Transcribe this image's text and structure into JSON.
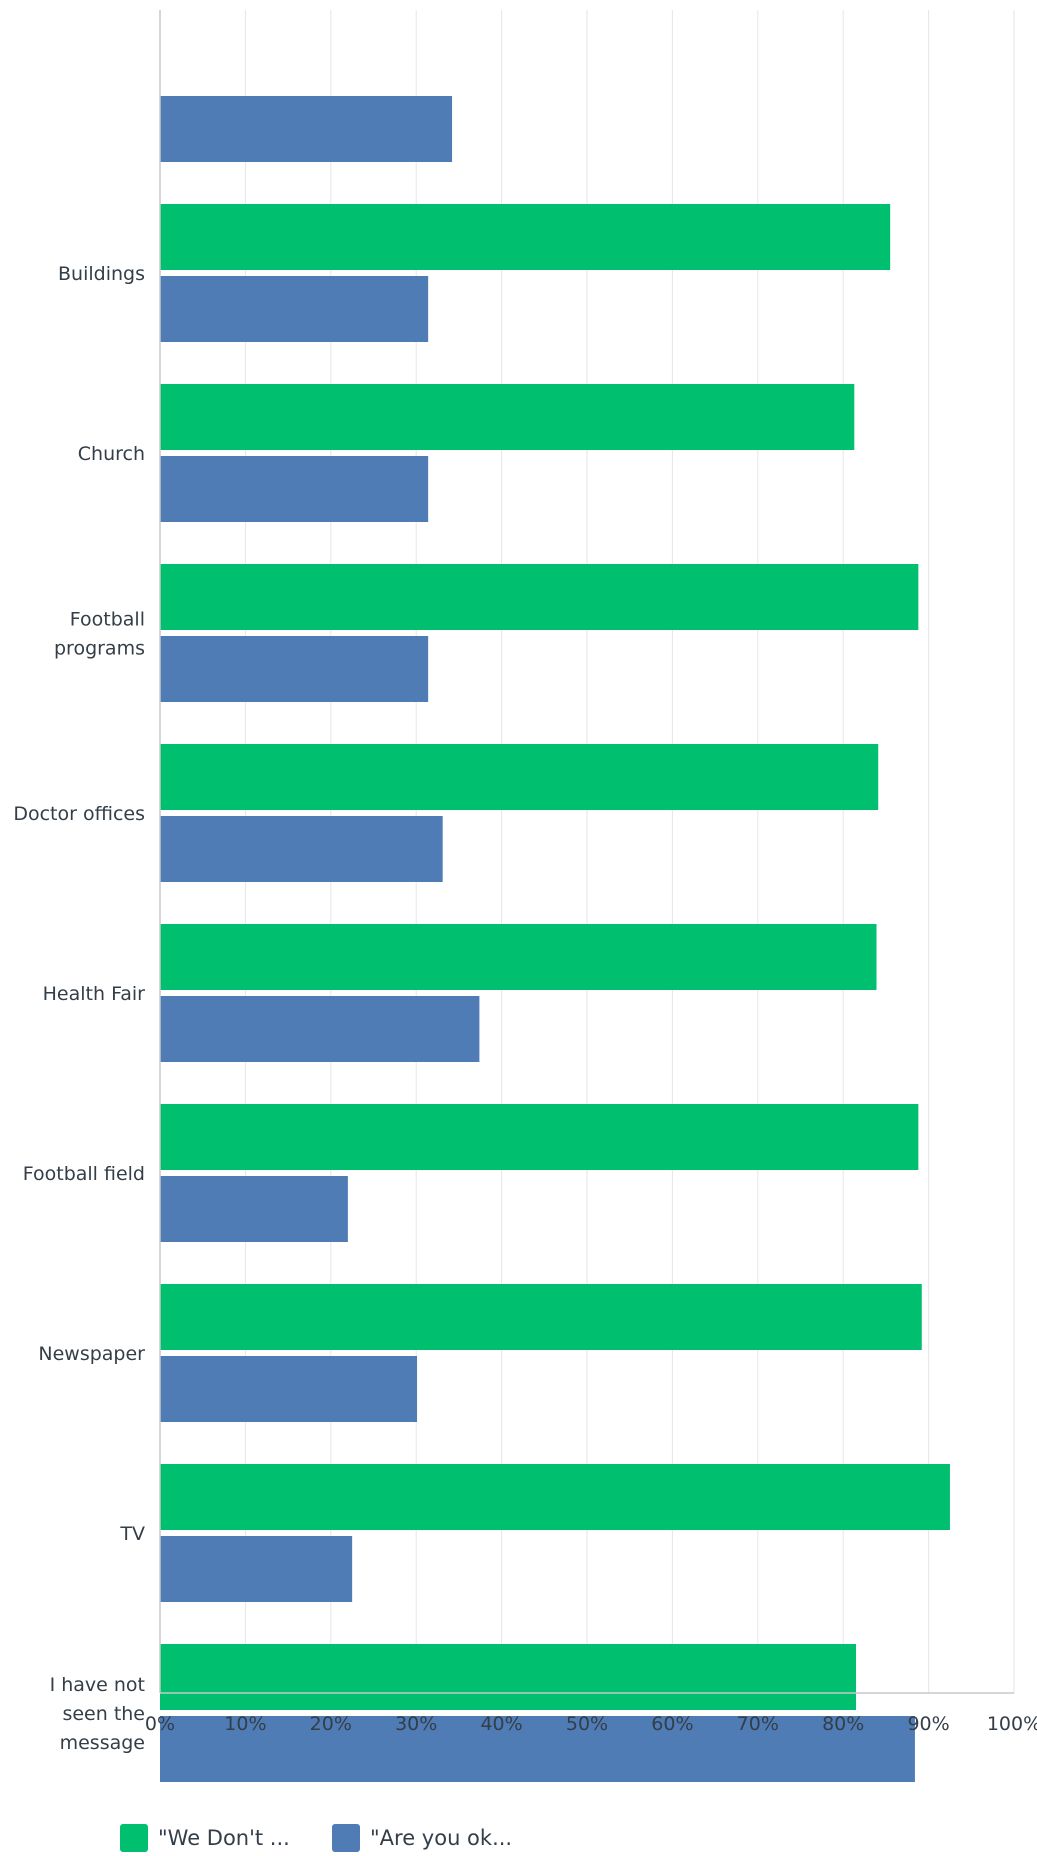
{
  "chart_data": {
    "type": "bar",
    "orientation": "horizontal",
    "title": "",
    "xlabel": "",
    "ylabel": "",
    "xlim": [
      0,
      100
    ],
    "x_tick_labels": [
      "0%",
      "10%",
      "20%",
      "30%",
      "40%",
      "50%",
      "60%",
      "70%",
      "80%",
      "90%",
      "100%"
    ],
    "x_ticks": [
      0,
      10,
      20,
      30,
      40,
      50,
      60,
      70,
      80,
      90,
      100
    ],
    "grid": "vertical",
    "legend": "bottom-left",
    "categories": [
      "",
      "Buildings",
      "Church",
      "Football programs",
      "Doctor offices",
      "Health Fair",
      "Football field",
      "Newspaper",
      "TV",
      "I have not seen the message"
    ],
    "category_label_lines": [
      [],
      [
        "Buildings"
      ],
      [
        "Church"
      ],
      [
        "Football",
        "programs"
      ],
      [
        "Doctor offices"
      ],
      [
        "Health Fair"
      ],
      [
        "Football field"
      ],
      [
        "Newspaper"
      ],
      [
        "TV"
      ],
      [
        "I have not",
        "seen the",
        "message"
      ]
    ],
    "series": [
      {
        "name": "\"We Don't ...",
        "color": "#00bf6f",
        "values": [
          null,
          85.5,
          81.3,
          88.8,
          84.1,
          83.9,
          88.8,
          89.2,
          92.5,
          81.5
        ]
      },
      {
        "name": "\"Are you ok...",
        "color": "#507cb6",
        "values": [
          34.2,
          31.4,
          31.4,
          31.4,
          33.1,
          37.4,
          22.0,
          30.1,
          22.5,
          88.4
        ]
      }
    ]
  }
}
